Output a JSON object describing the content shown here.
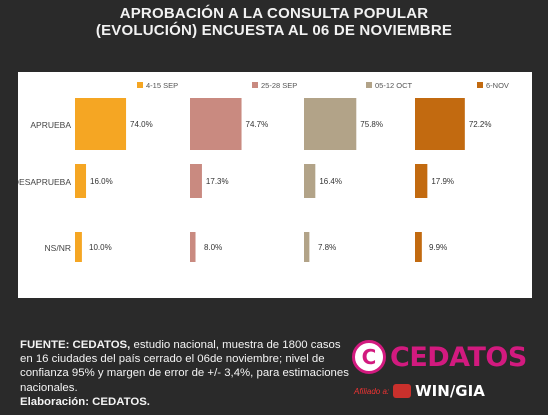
{
  "title_line1": "APROBACIÓN A LA CONSULTA POPULAR",
  "title_line2": "(EVOLUCIÓN) ENCUESTA AL 06 DE NOVIEMBRE",
  "colors": {
    "background": "#2a2a2a",
    "panel": "#ffffff",
    "series": [
      "#f5a623",
      "#c98a80",
      "#b2a388",
      "#c26a10"
    ],
    "brand_magenta": "#d21a7f"
  },
  "chart_data": {
    "type": "bar",
    "orientation": "horizontal",
    "categories": [
      "APRUEBA",
      "DESAPRUEBA",
      "NS/NR"
    ],
    "series": [
      {
        "name": "4-15 SEP",
        "values": [
          74.0,
          16.0,
          10.0
        ],
        "labels": [
          "74.0%",
          "16.0%",
          "10.0%"
        ]
      },
      {
        "name": "25-28 SEP",
        "values": [
          74.7,
          17.3,
          8.0
        ],
        "labels": [
          "74.7%",
          "17.3%",
          "8.0%"
        ]
      },
      {
        "name": "05-12 OCT",
        "values": [
          75.8,
          16.4,
          7.8
        ],
        "labels": [
          "75.8%",
          "16.4%",
          "7.8%"
        ]
      },
      {
        "name": "6-NOV",
        "values": [
          72.2,
          17.9,
          9.9
        ],
        "labels": [
          "72.2%",
          "17.9%",
          "9.9%"
        ]
      }
    ],
    "xlim": [
      0,
      100
    ],
    "legend_position": "top",
    "grid": false
  },
  "footer": {
    "source_label": "FUENTE: CEDATOS,",
    "source_text": " estudio nacional, muestra de 1800 casos en 16 ciudades del país cerrado el 06de noviembre; nivel de confianza 95% y margen de error de +/- 3,4%, para estimaciones nacionales.",
    "elaboration": "Elaboración: CEDATOS."
  },
  "logo": {
    "brand": "CEDATOS",
    "mark": "C",
    "affiliate": "Afiliado a:",
    "partner": "WIN/GIA"
  }
}
